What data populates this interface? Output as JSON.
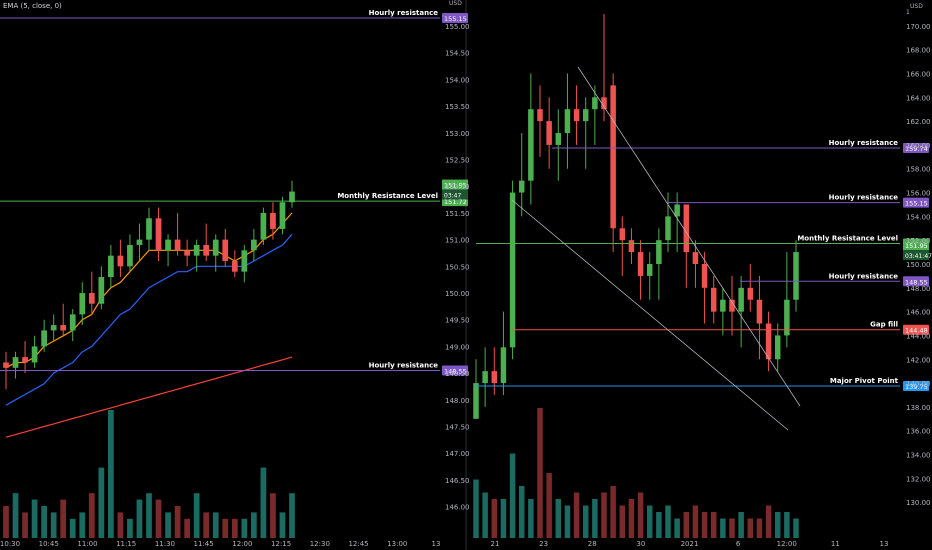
{
  "colors": {
    "background": "#000000",
    "up": "#4caf50",
    "down": "#ef5350",
    "up_volume": "#1b6b62",
    "down_volume": "#7a2a2a",
    "ema": "#ff9800",
    "ema_slow": "#2962ff",
    "ema_long": "#f44336",
    "axis_text": "#b2b5be",
    "level_purple": "#7e57c2",
    "level_green": "#4caf50",
    "level_red": "#ef5350",
    "level_blue": "#2196f3",
    "trendline": "#b2b5be"
  },
  "left_chart": {
    "indicator_label": "EMA (5, close, 0)",
    "y_axis": {
      "unit": "USD",
      "ticks": [
        "155.00",
        "154.50",
        "154.00",
        "153.50",
        "153.00",
        "152.50",
        "152.00",
        "151.50",
        "151.00",
        "150.50",
        "150.00",
        "149.50",
        "149.00",
        "148.50",
        "148.00",
        "147.50",
        "147.00",
        "146.50",
        "146.00"
      ]
    },
    "x_axis": {
      "ticks": [
        "10:30",
        "10:45",
        "11:00",
        "11:15",
        "11:30",
        "11:45",
        "12:00",
        "12:15",
        "12:30",
        "12:45",
        "13:00",
        "13"
      ]
    },
    "levels": [
      {
        "label": "Hourly resistance",
        "badge": "155.15",
        "value": 155.15,
        "color": "#7e57c2"
      },
      {
        "label": "Monthly Resistance Level",
        "badge": "151.72",
        "value": 151.72,
        "color": "#4caf50"
      },
      {
        "label": "Hourly resistance",
        "badge": "148.55",
        "value": 148.55,
        "color": "#7e57c2"
      }
    ],
    "price_badges": [
      "151.95",
      "03:47"
    ]
  },
  "right_chart": {
    "y_axis": {
      "unit": "USD",
      "ticks": [
        "170.00",
        "168.00",
        "166.00",
        "164.00",
        "162.00",
        "160.00",
        "158.00",
        "156.00",
        "154.00",
        "152.00",
        "150.00",
        "148.00",
        "146.00",
        "144.00",
        "142.00",
        "140.00",
        "138.00",
        "136.00",
        "134.00",
        "132.00",
        "130.00"
      ],
      "top_tick": "1"
    },
    "x_axis": {
      "ticks": [
        "21",
        "23",
        "28",
        "30",
        "2021",
        "6",
        "12:00",
        "11",
        "13"
      ]
    },
    "levels": [
      {
        "label": "Hourly resistance",
        "badge": "159.74",
        "value": 159.74,
        "color": "#7e57c2"
      },
      {
        "label": "Hourly resistance",
        "badge": "155.15",
        "value": 155.15,
        "color": "#7e57c2"
      },
      {
        "label": "Monthly Resistance Level",
        "badge": "151.72",
        "value": 151.72,
        "color": "#4caf50"
      },
      {
        "label": "Hourly resistance",
        "badge": "148.55",
        "value": 148.55,
        "color": "#7e57c2"
      },
      {
        "label": "Gap fill",
        "badge": "144.48",
        "value": 144.48,
        "color": "#ef5350"
      },
      {
        "label": "Major Pivot Point",
        "badge": "139.75",
        "value": 139.75,
        "color": "#2196f3"
      }
    ],
    "price_badges": [
      "151.95",
      "03:41:47"
    ]
  },
  "chart_data": [
    {
      "type": "candlestick",
      "title": "",
      "interval_axis": "intraday time",
      "ylim": [
        145.75,
        155.3
      ],
      "series": [
        {
          "name": "EMA (5, close, 0)",
          "values": []
        }
      ],
      "ohlc": [
        [
          148.7,
          148.9,
          148.2,
          148.6
        ],
        [
          148.6,
          148.9,
          148.4,
          148.8
        ],
        [
          148.8,
          149.1,
          148.5,
          148.7
        ],
        [
          148.7,
          149.2,
          148.6,
          149.0
        ],
        [
          149.0,
          149.5,
          148.9,
          149.3
        ],
        [
          149.3,
          149.6,
          149.1,
          149.4
        ],
        [
          149.4,
          149.8,
          149.2,
          149.3
        ],
        [
          149.3,
          149.7,
          149.1,
          149.6
        ],
        [
          149.6,
          150.2,
          149.4,
          150.0
        ],
        [
          150.0,
          150.4,
          149.6,
          149.8
        ],
        [
          149.8,
          150.5,
          149.7,
          150.3
        ],
        [
          150.3,
          150.9,
          150.1,
          150.7
        ],
        [
          150.7,
          151.0,
          150.3,
          150.5
        ],
        [
          150.5,
          151.1,
          150.4,
          150.9
        ],
        [
          150.9,
          151.3,
          150.6,
          151.0
        ],
        [
          151.0,
          151.6,
          150.8,
          151.4
        ],
        [
          151.4,
          151.6,
          150.6,
          150.8
        ],
        [
          150.8,
          151.1,
          150.5,
          151.0
        ],
        [
          151.0,
          151.5,
          150.7,
          150.8
        ],
        [
          150.8,
          151.0,
          150.5,
          150.7
        ],
        [
          150.7,
          151.0,
          150.4,
          150.9
        ],
        [
          150.9,
          151.3,
          150.6,
          150.7
        ],
        [
          150.7,
          151.1,
          150.4,
          151.0
        ],
        [
          151.0,
          151.2,
          150.5,
          150.6
        ],
        [
          150.6,
          150.8,
          150.3,
          150.4
        ],
        [
          150.4,
          150.9,
          150.2,
          150.8
        ],
        [
          150.8,
          151.2,
          150.6,
          151.0
        ],
        [
          151.0,
          151.6,
          150.9,
          151.5
        ],
        [
          151.5,
          151.7,
          151.0,
          151.2
        ],
        [
          151.2,
          151.8,
          151.1,
          151.7
        ],
        [
          151.7,
          152.1,
          151.6,
          151.9
        ]
      ],
      "ema_fast": [
        148.6,
        148.7,
        148.7,
        148.8,
        149.0,
        149.1,
        149.2,
        149.3,
        149.5,
        149.6,
        149.9,
        150.1,
        150.2,
        150.4,
        150.6,
        150.8,
        150.8,
        150.8,
        150.8,
        150.8,
        150.8,
        150.8,
        150.8,
        150.7,
        150.6,
        150.7,
        150.8,
        151.0,
        151.1,
        151.3,
        151.5
      ],
      "ema_slow": [
        147.9,
        148.0,
        148.1,
        148.2,
        148.3,
        148.5,
        148.6,
        148.7,
        148.9,
        149.0,
        149.2,
        149.4,
        149.6,
        149.7,
        149.9,
        150.1,
        150.2,
        150.3,
        150.4,
        150.4,
        150.5,
        150.5,
        150.5,
        150.5,
        150.5,
        150.5,
        150.6,
        150.7,
        150.8,
        150.9,
        151.1
      ],
      "ema_long": [
        147.3,
        147.35,
        147.4,
        147.45,
        147.5,
        147.55,
        147.6,
        147.65,
        147.7,
        147.75,
        147.8,
        147.85,
        147.9,
        147.95,
        148.0,
        148.05,
        148.1,
        148.15,
        148.2,
        148.25,
        148.3,
        148.35,
        148.4,
        148.45,
        148.5,
        148.55,
        148.6,
        148.65,
        148.7,
        148.75,
        148.8
      ],
      "volume": [
        0.25,
        0.35,
        0.2,
        0.3,
        0.25,
        0.2,
        0.3,
        0.15,
        0.2,
        0.35,
        0.55,
        1.0,
        0.2,
        0.15,
        0.3,
        0.35,
        0.3,
        0.2,
        0.25,
        0.15,
        0.35,
        0.2,
        0.2,
        0.15,
        0.15,
        0.15,
        0.2,
        0.55,
        0.35,
        0.2,
        0.35
      ]
    },
    {
      "type": "candlestick",
      "title": "",
      "interval_axis": "daily/hourly dates",
      "ylim": [
        128.5,
        171.5
      ],
      "ohlc": [
        [
          137,
          142,
          137,
          140
        ],
        [
          140,
          143,
          138,
          141
        ],
        [
          141,
          143,
          139,
          140
        ],
        [
          140,
          146,
          139,
          143
        ],
        [
          143,
          157,
          142,
          156
        ],
        [
          156,
          161,
          154,
          157
        ],
        [
          157,
          166,
          155,
          163
        ],
        [
          163,
          165,
          159,
          162
        ],
        [
          162,
          164,
          158,
          160
        ],
        [
          160,
          163,
          157,
          161
        ],
        [
          161,
          166,
          158,
          163
        ],
        [
          163,
          165,
          160,
          162
        ],
        [
          162,
          164,
          158,
          163
        ],
        [
          163,
          165,
          160,
          164
        ],
        [
          164,
          171,
          162,
          163
        ],
        [
          165,
          166,
          151,
          153
        ],
        [
          153,
          154,
          149,
          152
        ],
        [
          152,
          153,
          150,
          151
        ],
        [
          151,
          152,
          147,
          149
        ],
        [
          149,
          151,
          147,
          150
        ],
        [
          150,
          153,
          147,
          152
        ],
        [
          152,
          156,
          151,
          154
        ],
        [
          154,
          156,
          151,
          155
        ],
        [
          155,
          155,
          148,
          151
        ],
        [
          151,
          152,
          148,
          150
        ],
        [
          150,
          151,
          145,
          148
        ],
        [
          148,
          149,
          145,
          146
        ],
        [
          146,
          148,
          144,
          147
        ],
        [
          147,
          149,
          144,
          146
        ],
        [
          146,
          149,
          143,
          148
        ],
        [
          148,
          150,
          146,
          147
        ],
        [
          147,
          149,
          142,
          145
        ],
        [
          145,
          146,
          141,
          142
        ],
        [
          142,
          145,
          141,
          144
        ],
        [
          144,
          151,
          143,
          147
        ],
        [
          147,
          152,
          146,
          151
        ]
      ],
      "volume": [
        0.45,
        0.35,
        0.3,
        0.3,
        0.65,
        0.4,
        0.3,
        1.0,
        0.5,
        0.3,
        0.25,
        0.35,
        0.25,
        0.3,
        0.35,
        0.4,
        0.25,
        0.3,
        0.35,
        0.25,
        0.2,
        0.25,
        0.15,
        0.2,
        0.25,
        0.2,
        0.2,
        0.15,
        0.15,
        0.2,
        0.15,
        0.15,
        0.25,
        0.2,
        0.2,
        0.15
      ]
    }
  ]
}
